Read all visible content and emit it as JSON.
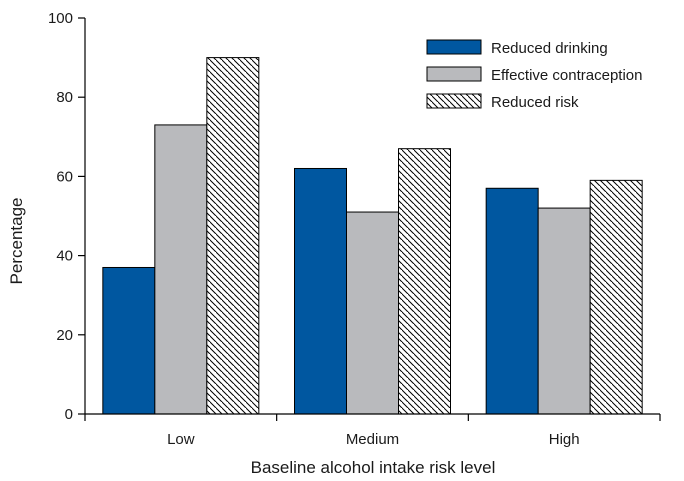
{
  "chart_data": {
    "type": "bar",
    "categories": [
      "Low",
      "Medium",
      "High"
    ],
    "series": [
      {
        "name": "Reduced drinking",
        "values": [
          37,
          62,
          57
        ],
        "color": "#0057a0",
        "fill": "solid"
      },
      {
        "name": "Effective contraception",
        "values": [
          73,
          51,
          52
        ],
        "color": "#b9babd",
        "fill": "solid"
      },
      {
        "name": "Reduced risk",
        "values": [
          90,
          67,
          59
        ],
        "color": "#ffffff",
        "fill": "diagonal-hatch"
      }
    ],
    "xlabel": "Baseline alcohol intake risk level",
    "ylabel": "Percentage",
    "ylim": [
      0,
      100
    ],
    "yticks": [
      0,
      20,
      40,
      60,
      80,
      100
    ],
    "grid": false,
    "legend_position": "top-right"
  }
}
